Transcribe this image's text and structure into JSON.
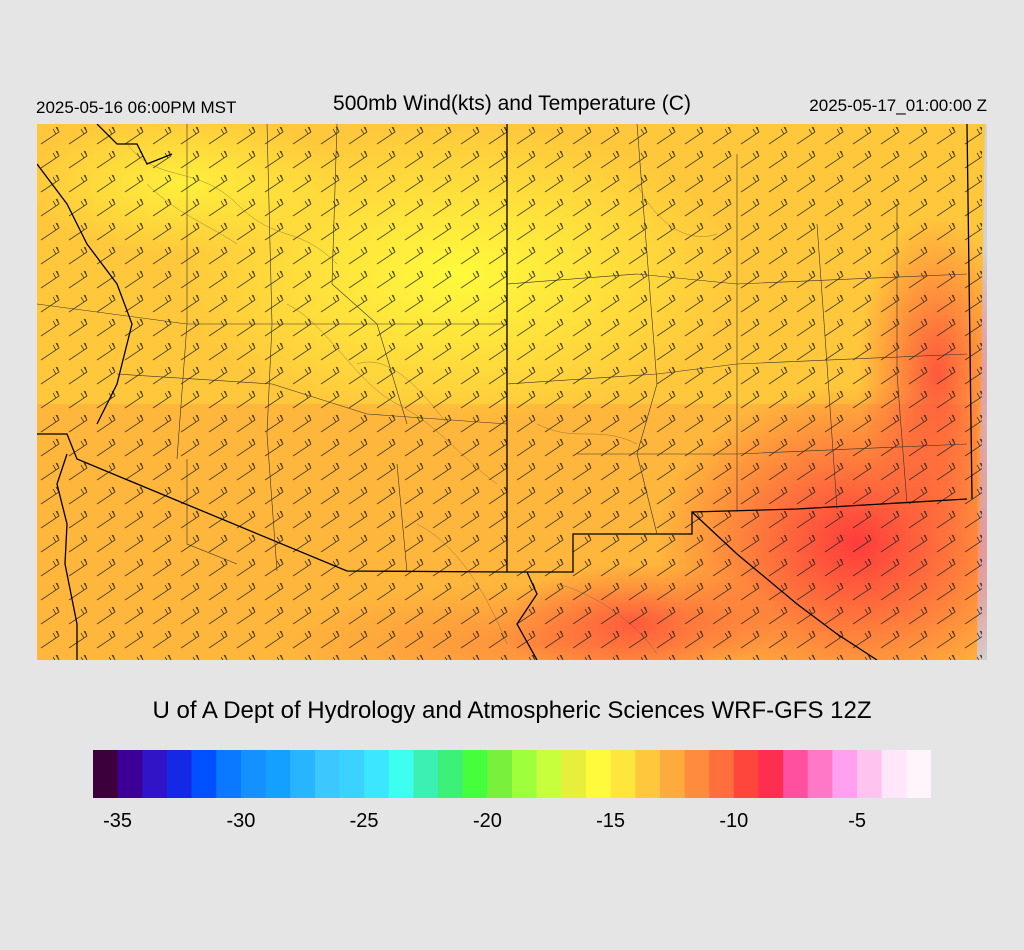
{
  "header": {
    "valid_time": "2025-05-16 06:00PM MST",
    "title": "500mb Wind(kts) and Temperature (C)",
    "run_time": "2025-05-17_01:00:00 Z"
  },
  "credit": "U of A Dept of Hydrology and Atmospheric Sciences WRF-GFS 12Z",
  "colorbar": {
    "colors": [
      "#3c003c",
      "#3c0096",
      "#3214c8",
      "#1428e6",
      "#0050ff",
      "#0a78ff",
      "#1490ff",
      "#14a0ff",
      "#28b4ff",
      "#3cc8ff",
      "#3cd2ff",
      "#3ce6ff",
      "#3cfff0",
      "#3cf0b4",
      "#3cf078",
      "#46ff3c",
      "#78f03c",
      "#a0ff3c",
      "#c8ff3c",
      "#e6f03c",
      "#fffa3c",
      "#ffe63c",
      "#ffc83c",
      "#ffaa3c",
      "#ff8c3c",
      "#ff6e3c",
      "#ff463c",
      "#ff2d50",
      "#ff50a0",
      "#ff78c8",
      "#ffa0f0",
      "#ffc3f0",
      "#ffe6fa",
      "#fff5fa"
    ],
    "labels": [
      {
        "value": -35,
        "text": "-35"
      },
      {
        "value": -30,
        "text": "-30"
      },
      {
        "value": -25,
        "text": "-25"
      },
      {
        "value": -20,
        "text": "-20"
      },
      {
        "value": -15,
        "text": "-15"
      },
      {
        "value": -10,
        "text": "-10"
      },
      {
        "value": -5,
        "text": "-5"
      }
    ],
    "min": -36,
    "step": 1
  }
}
